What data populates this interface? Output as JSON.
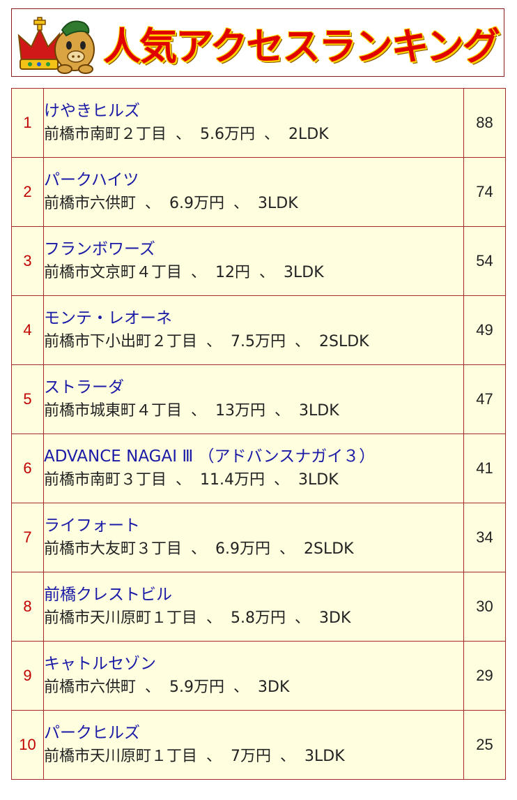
{
  "banner": {
    "title": "人気アクセスランキング"
  },
  "colors": {
    "rank_text": "#c00000",
    "name_link": "#1a1aa6",
    "row_background": "#ffffe0",
    "border": "#a52a2a",
    "banner_title": "#e00000",
    "banner_outline": "#ffd400"
  },
  "ranking": [
    {
      "rank": "1",
      "name": "けやきヒルズ",
      "address": "前橋市南町２丁目",
      "sep1": "、",
      "rent": "5.6万円",
      "sep2": "、",
      "layout": "2LDK",
      "count": "88"
    },
    {
      "rank": "2",
      "name": "パークハイツ",
      "address": "前橋市六供町",
      "sep1": "、",
      "rent": "6.9万円",
      "sep2": "、",
      "layout": "3LDK",
      "count": "74"
    },
    {
      "rank": "3",
      "name": "フランボワーズ",
      "address": "前橋市文京町４丁目",
      "sep1": "、",
      "rent": "12円",
      "sep2": "、",
      "layout": "3LDK",
      "count": "54"
    },
    {
      "rank": "4",
      "name": "モンテ・レオーネ",
      "address": "前橋市下小出町２丁目",
      "sep1": "、",
      "rent": "7.5万円",
      "sep2": "、",
      "layout": "2SLDK",
      "count": "49"
    },
    {
      "rank": "5",
      "name": "ストラーダ",
      "address": "前橋市城東町４丁目",
      "sep1": "、",
      "rent": "13万円",
      "sep2": "、",
      "layout": "3LDK",
      "count": "47"
    },
    {
      "rank": "6",
      "name": "ADVANCE NAGAI Ⅲ （アドバンスナガイ３）",
      "address": "前橋市南町３丁目",
      "sep1": "、",
      "rent": "11.4万円",
      "sep2": "、",
      "layout": "3LDK",
      "count": "41"
    },
    {
      "rank": "7",
      "name": "ライフォート",
      "address": "前橋市大友町３丁目",
      "sep1": "、",
      "rent": "6.9万円",
      "sep2": "、",
      "layout": "2SLDK",
      "count": "34"
    },
    {
      "rank": "8",
      "name": "前橋クレストビル",
      "address": "前橋市天川原町１丁目",
      "sep1": "、",
      "rent": "5.8万円",
      "sep2": "、",
      "layout": "3DK",
      "count": "30"
    },
    {
      "rank": "9",
      "name": "キャトルセゾン",
      "address": "前橋市六供町",
      "sep1": "、",
      "rent": "5.9万円",
      "sep2": "、",
      "layout": "3DK",
      "count": "29"
    },
    {
      "rank": "10",
      "name": "パークヒルズ",
      "address": "前橋市天川原町１丁目",
      "sep1": "、",
      "rent": "7万円",
      "sep2": "、",
      "layout": "3LDK",
      "count": "25"
    }
  ]
}
